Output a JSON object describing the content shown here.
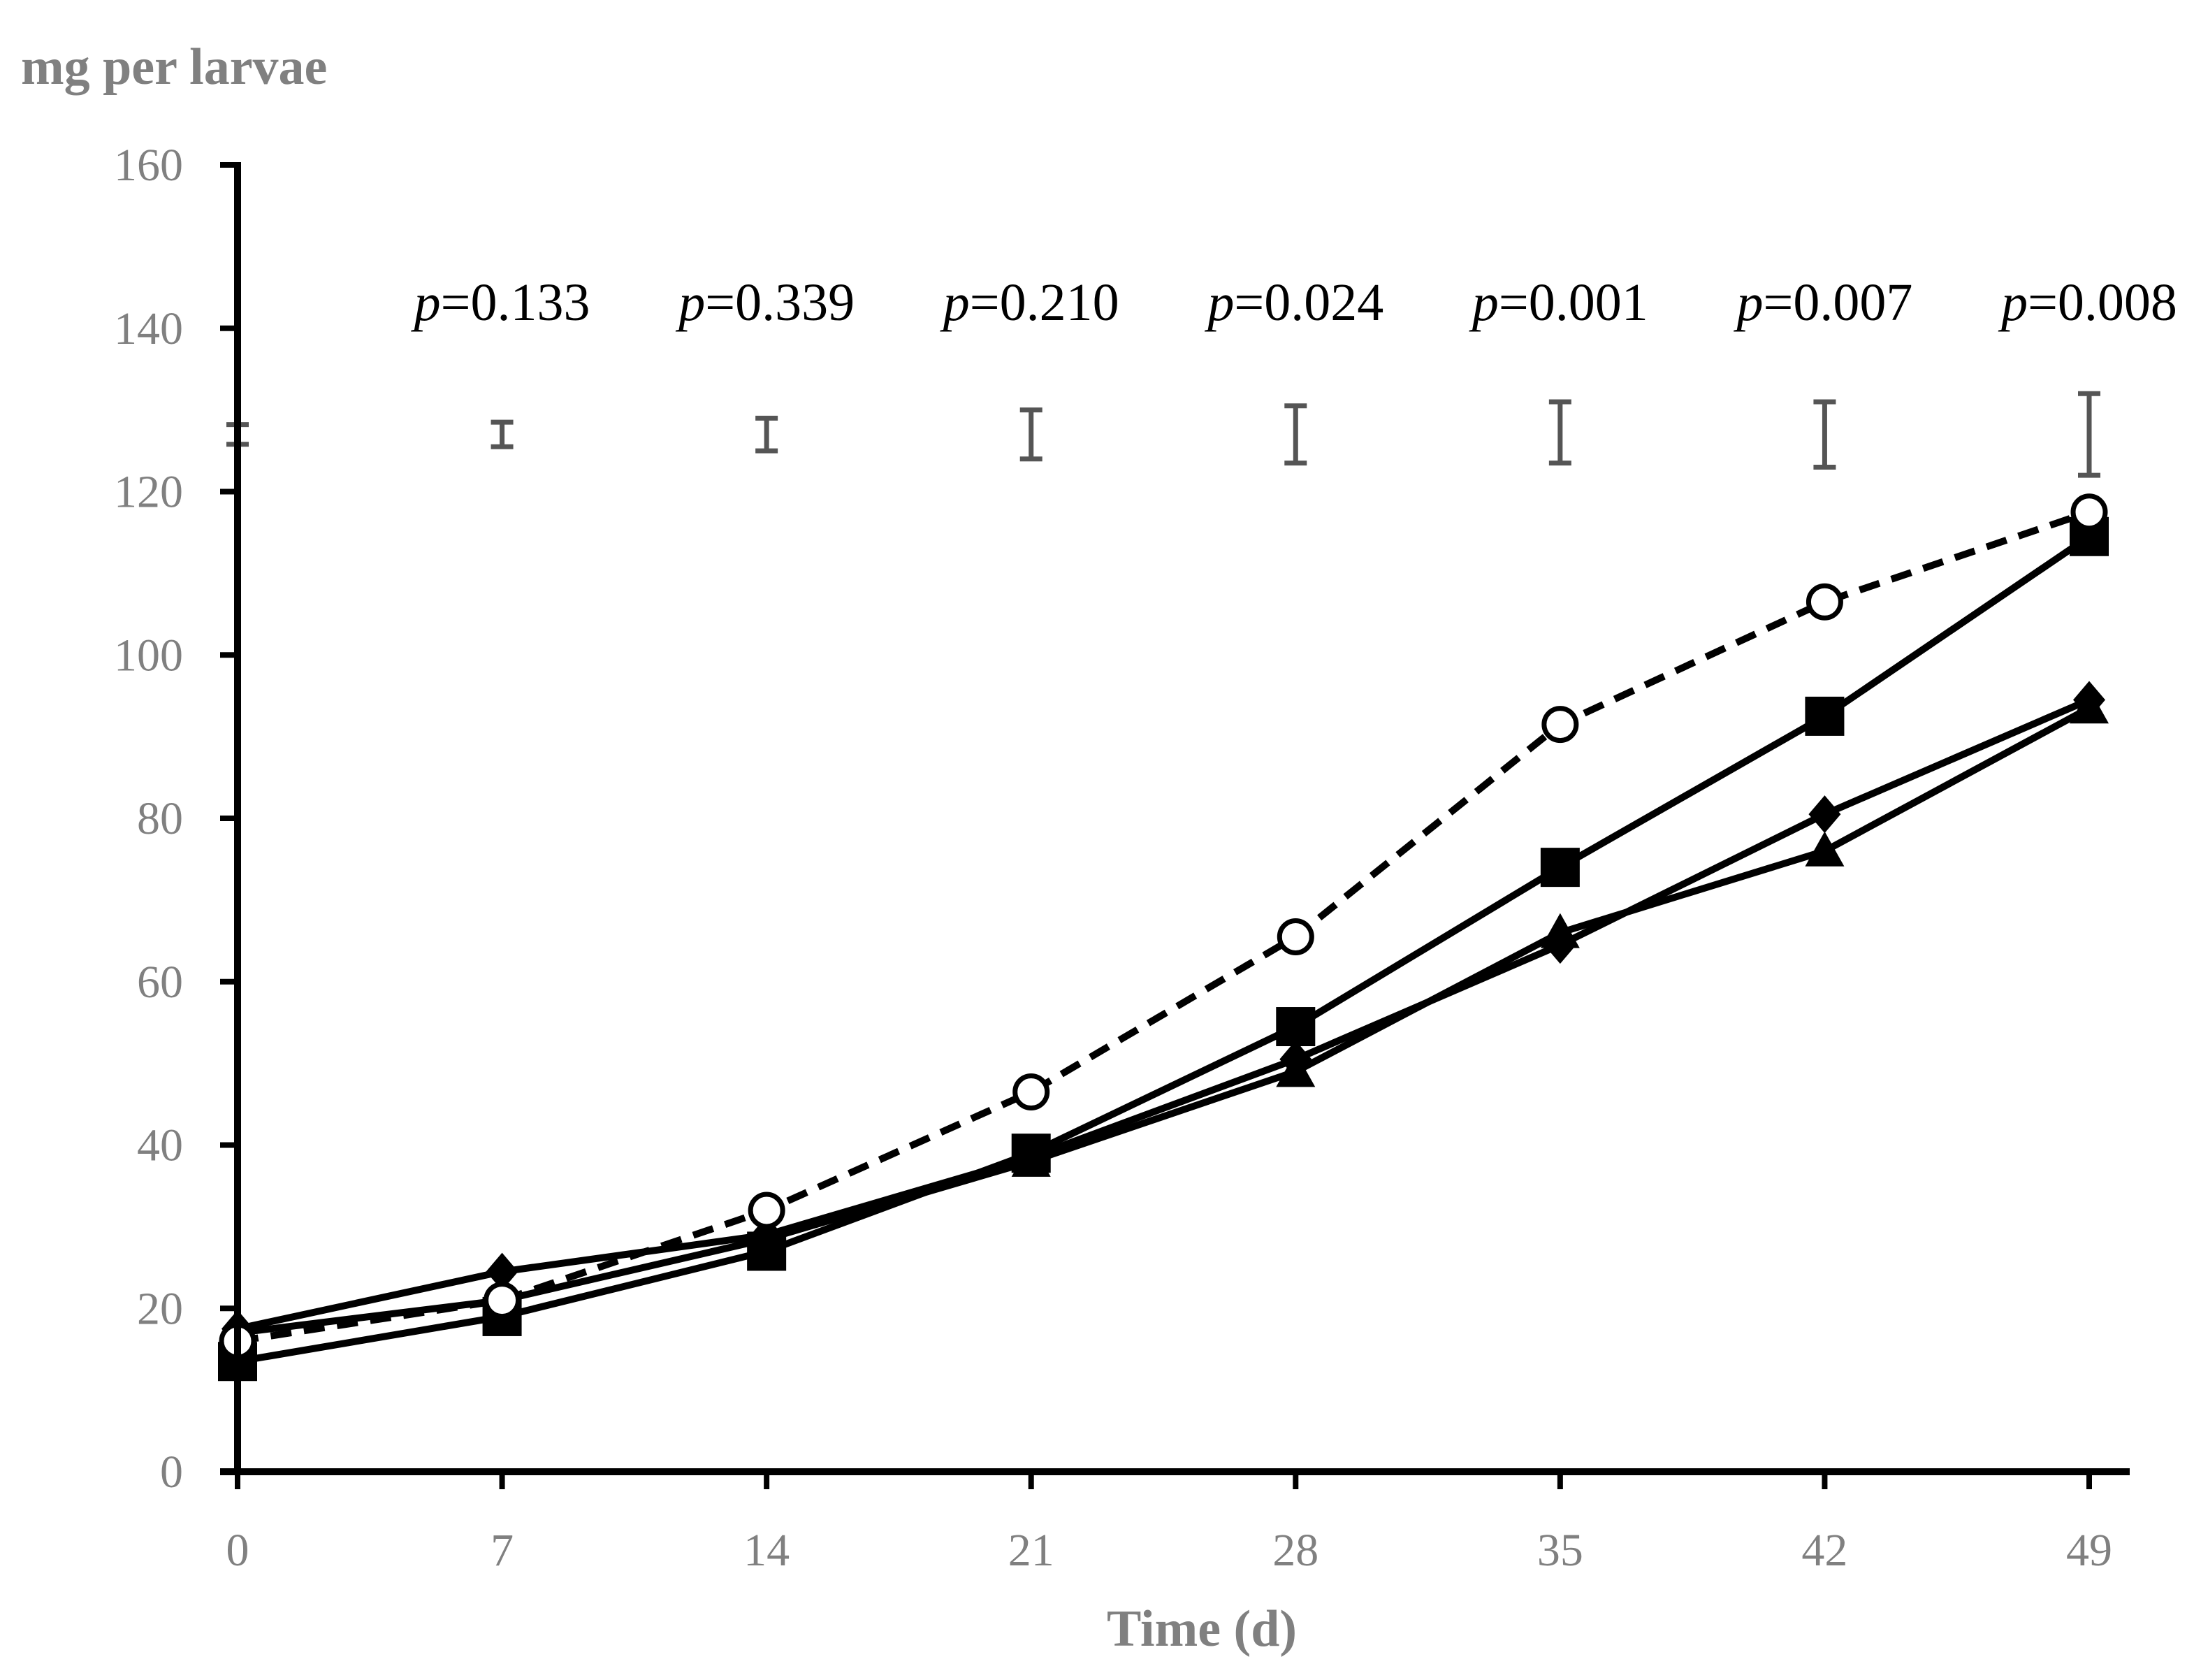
{
  "chart_data": {
    "type": "line",
    "title": "",
    "ylabel": "mg per larvae",
    "xlabel": "Time (d)",
    "ylim": [
      0,
      160
    ],
    "yticks": [
      0,
      20,
      40,
      60,
      80,
      100,
      120,
      140,
      160
    ],
    "xlim": [
      0,
      49
    ],
    "x": [
      0,
      7,
      14,
      21,
      28,
      35,
      42,
      49
    ],
    "xtick_labels": [
      "0",
      "7",
      "14",
      "21",
      "28",
      "35",
      "42",
      "49"
    ],
    "series": [
      {
        "name": "open circle (dashed)",
        "marker": "circle-open",
        "line": "dashed",
        "values": [
          16,
          21,
          32,
          46.5,
          65.5,
          91.5,
          106.5,
          117.5
        ]
      },
      {
        "name": "square",
        "marker": "square",
        "line": "solid",
        "values": [
          13.5,
          19,
          27,
          39,
          54.5,
          74,
          92.5,
          114.5
        ]
      },
      {
        "name": "diamond",
        "marker": "diamond",
        "line": "solid",
        "values": [
          17.5,
          24.5,
          29,
          38.5,
          50.5,
          64.5,
          80.5,
          94.5
        ]
      },
      {
        "name": "triangle",
        "marker": "triangle",
        "line": "solid",
        "values": [
          17,
          21,
          28.5,
          38,
          49,
          66,
          76,
          93.5
        ]
      }
    ],
    "error_bars": [
      {
        "x": 0,
        "low": 125.8,
        "high": 128.2
      },
      {
        "x": 7,
        "low": 125.5,
        "high": 128.5
      },
      {
        "x": 14,
        "low": 125,
        "high": 129
      },
      {
        "x": 21,
        "low": 124,
        "high": 130
      },
      {
        "x": 28,
        "low": 123.5,
        "high": 130.5
      },
      {
        "x": 35,
        "low": 123.5,
        "high": 131
      },
      {
        "x": 42,
        "low": 123,
        "high": 131
      },
      {
        "x": 49,
        "low": 122,
        "high": 132
      }
    ],
    "annotations": [
      {
        "x": 7,
        "prefix": "p",
        "value": "=0.133"
      },
      {
        "x": 14,
        "prefix": "p",
        "value": "=0.339"
      },
      {
        "x": 21,
        "prefix": "p",
        "value": "=0.210"
      },
      {
        "x": 28,
        "prefix": "p",
        "value": "=0.024"
      },
      {
        "x": 35,
        "prefix": "p",
        "value": "=0.001"
      },
      {
        "x": 42,
        "prefix": "p",
        "value": "=0.007"
      },
      {
        "x": 49,
        "prefix": "p",
        "value": "=0.008"
      }
    ],
    "grid": false,
    "legend": "none"
  }
}
